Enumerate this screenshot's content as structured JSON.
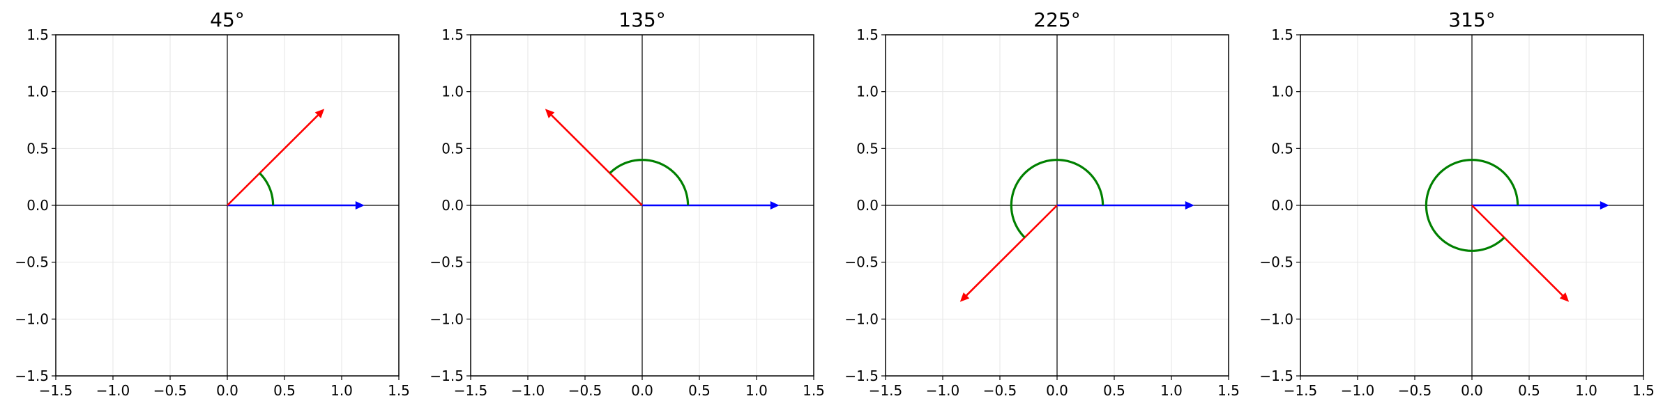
{
  "chart_data": [
    {
      "type": "line",
      "title": "45°",
      "angle_deg": 45,
      "xlim": [
        -1.5,
        1.5
      ],
      "ylim": [
        -1.5,
        1.5
      ],
      "xticks": [
        -1.5,
        -1.0,
        -0.5,
        0.0,
        0.5,
        1.0,
        1.5
      ],
      "yticks": [
        -1.5,
        -1.0,
        -0.5,
        0.0,
        0.5,
        1.0,
        1.5
      ],
      "xtick_labels": [
        "−1.5",
        "−1.0",
        "−0.5",
        "0.0",
        "0.5",
        "1.0",
        "1.5"
      ],
      "ytick_labels": [
        "−1.5",
        "−1.0",
        "−0.5",
        "0.0",
        "0.5",
        "1.0",
        "1.5"
      ],
      "grid": true,
      "series": [
        {
          "kind": "arrow",
          "color": "#0000ff",
          "x": [
            0,
            1.2
          ],
          "y": [
            0,
            0
          ]
        },
        {
          "kind": "arrow",
          "color": "#ff0000",
          "x": [
            0,
            0.8485
          ],
          "y": [
            0,
            0.8485
          ]
        },
        {
          "kind": "arc",
          "color": "#008000",
          "radius": 0.4,
          "start_deg": 0,
          "end_deg": 45
        }
      ]
    },
    {
      "type": "line",
      "title": "135°",
      "angle_deg": 135,
      "xlim": [
        -1.5,
        1.5
      ],
      "ylim": [
        -1.5,
        1.5
      ],
      "xticks": [
        -1.5,
        -1.0,
        -0.5,
        0.0,
        0.5,
        1.0,
        1.5
      ],
      "yticks": [
        -1.5,
        -1.0,
        -0.5,
        0.0,
        0.5,
        1.0,
        1.5
      ],
      "xtick_labels": [
        "−1.5",
        "−1.0",
        "−0.5",
        "0.0",
        "0.5",
        "1.0",
        "1.5"
      ],
      "ytick_labels": [
        "−1.5",
        "−1.0",
        "−0.5",
        "0.0",
        "0.5",
        "1.0",
        "1.5"
      ],
      "grid": true,
      "series": [
        {
          "kind": "arrow",
          "color": "#0000ff",
          "x": [
            0,
            1.2
          ],
          "y": [
            0,
            0
          ]
        },
        {
          "kind": "arrow",
          "color": "#ff0000",
          "x": [
            0,
            -0.8485
          ],
          "y": [
            0,
            0.8485
          ]
        },
        {
          "kind": "arc",
          "color": "#008000",
          "radius": 0.4,
          "start_deg": 0,
          "end_deg": 135
        }
      ]
    },
    {
      "type": "line",
      "title": "225°",
      "angle_deg": 225,
      "xlim": [
        -1.5,
        1.5
      ],
      "ylim": [
        -1.5,
        1.5
      ],
      "xticks": [
        -1.5,
        -1.0,
        -0.5,
        0.0,
        0.5,
        1.0,
        1.5
      ],
      "yticks": [
        -1.5,
        -1.0,
        -0.5,
        0.0,
        0.5,
        1.0,
        1.5
      ],
      "xtick_labels": [
        "−1.5",
        "−1.0",
        "−0.5",
        "0.0",
        "0.5",
        "1.0",
        "1.5"
      ],
      "ytick_labels": [
        "−1.5",
        "−1.0",
        "−0.5",
        "0.0",
        "0.5",
        "1.0",
        "1.5"
      ],
      "grid": true,
      "series": [
        {
          "kind": "arrow",
          "color": "#0000ff",
          "x": [
            0,
            1.2
          ],
          "y": [
            0,
            0
          ]
        },
        {
          "kind": "arrow",
          "color": "#ff0000",
          "x": [
            0,
            -0.8485
          ],
          "y": [
            0,
            -0.8485
          ]
        },
        {
          "kind": "arc",
          "color": "#008000",
          "radius": 0.4,
          "start_deg": 0,
          "end_deg": 225
        }
      ]
    },
    {
      "type": "line",
      "title": "315°",
      "angle_deg": 315,
      "xlim": [
        -1.5,
        1.5
      ],
      "ylim": [
        -1.5,
        1.5
      ],
      "xticks": [
        -1.5,
        -1.0,
        -0.5,
        0.0,
        0.5,
        1.0,
        1.5
      ],
      "yticks": [
        -1.5,
        -1.0,
        -0.5,
        0.0,
        0.5,
        1.0,
        1.5
      ],
      "xtick_labels": [
        "−1.5",
        "−1.0",
        "−0.5",
        "0.0",
        "0.5",
        "1.0",
        "1.5"
      ],
      "ytick_labels": [
        "−1.5",
        "−1.0",
        "−0.5",
        "0.0",
        "0.5",
        "1.0",
        "1.5"
      ],
      "grid": true,
      "series": [
        {
          "kind": "arrow",
          "color": "#0000ff",
          "x": [
            0,
            1.2
          ],
          "y": [
            0,
            0
          ]
        },
        {
          "kind": "arrow",
          "color": "#ff0000",
          "x": [
            0,
            0.8485
          ],
          "y": [
            0,
            -0.8485
          ]
        },
        {
          "kind": "arc",
          "color": "#008000",
          "radius": 0.4,
          "start_deg": 0,
          "end_deg": 315
        }
      ]
    }
  ]
}
